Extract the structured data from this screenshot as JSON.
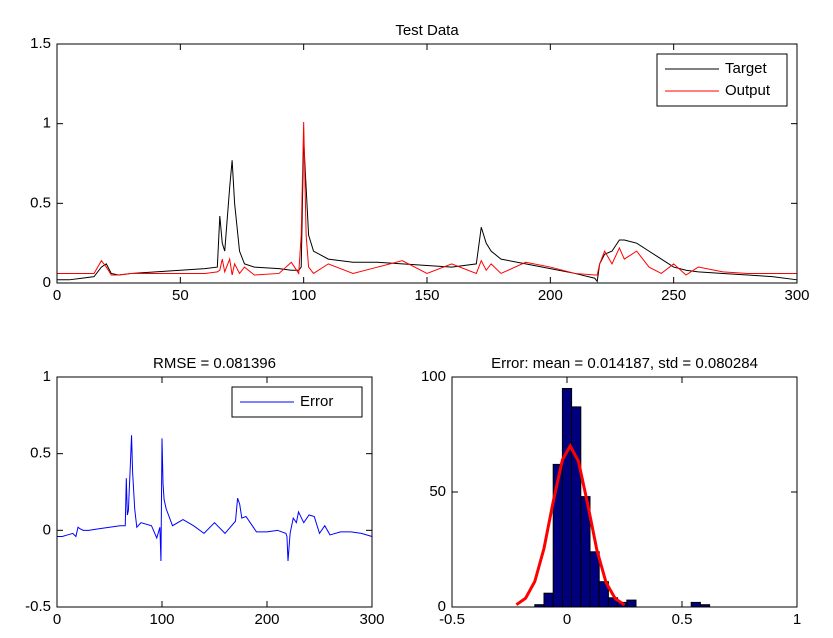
{
  "chart_data": [
    {
      "type": "line",
      "title": "Test Data",
      "x": [
        0,
        5,
        10,
        15,
        18,
        20,
        22,
        25,
        30,
        40,
        50,
        60,
        65,
        66,
        67,
        68,
        70,
        71,
        72,
        74,
        76,
        80,
        90,
        95,
        98,
        99,
        100,
        101,
        102,
        104,
        110,
        120,
        130,
        140,
        150,
        160,
        170,
        172,
        174,
        176,
        180,
        190,
        200,
        210,
        218,
        219,
        220,
        222,
        225,
        228,
        230,
        235,
        240,
        245,
        250,
        255,
        260,
        270,
        280,
        290,
        300
      ],
      "series": [
        {
          "name": "Target",
          "color": "#000000",
          "values": [
            0.02,
            0.02,
            0.03,
            0.04,
            0.1,
            0.12,
            0.06,
            0.05,
            0.06,
            0.07,
            0.08,
            0.09,
            0.1,
            0.42,
            0.25,
            0.2,
            0.6,
            0.77,
            0.5,
            0.2,
            0.12,
            0.1,
            0.09,
            0.08,
            0.08,
            0.1,
            0.9,
            0.6,
            0.3,
            0.2,
            0.15,
            0.13,
            0.13,
            0.12,
            0.11,
            0.1,
            0.12,
            0.35,
            0.25,
            0.2,
            0.15,
            0.12,
            0.09,
            0.06,
            0.03,
            0.01,
            0.12,
            0.18,
            0.2,
            0.27,
            0.27,
            0.25,
            0.2,
            0.15,
            0.1,
            0.08,
            0.07,
            0.06,
            0.05,
            0.04,
            0.02
          ]
        },
        {
          "name": "Output",
          "color": "#ff0000",
          "values": [
            0.06,
            0.06,
            0.06,
            0.06,
            0.14,
            0.1,
            0.05,
            0.05,
            0.06,
            0.06,
            0.06,
            0.06,
            0.07,
            0.08,
            0.15,
            0.07,
            0.15,
            0.05,
            0.12,
            0.06,
            0.1,
            0.05,
            0.06,
            0.13,
            0.06,
            0.3,
            1.01,
            0.3,
            0.1,
            0.06,
            0.12,
            0.06,
            0.1,
            0.14,
            0.06,
            0.12,
            0.06,
            0.14,
            0.08,
            0.12,
            0.06,
            0.13,
            0.1,
            0.06,
            0.05,
            0.05,
            0.12,
            0.2,
            0.12,
            0.22,
            0.15,
            0.2,
            0.1,
            0.06,
            0.12,
            0.05,
            0.1,
            0.07,
            0.06,
            0.06,
            0.06
          ]
        }
      ],
      "xlim": [
        0,
        300
      ],
      "xticks": [
        0,
        50,
        100,
        150,
        200,
        250,
        300
      ],
      "ylim": [
        0,
        1.5
      ],
      "yticks": [
        0,
        0.5,
        1,
        1.5
      ],
      "legend": "upper right"
    },
    {
      "type": "line",
      "title": "RMSE = 0.081396",
      "x": [
        0,
        5,
        10,
        15,
        18,
        20,
        22,
        25,
        30,
        40,
        50,
        60,
        65,
        66,
        67,
        68,
        70,
        71,
        72,
        74,
        76,
        80,
        90,
        95,
        98,
        99,
        100,
        101,
        102,
        104,
        110,
        120,
        130,
        140,
        150,
        160,
        170,
        172,
        174,
        176,
        180,
        190,
        200,
        210,
        218,
        219,
        220,
        222,
        225,
        228,
        230,
        235,
        240,
        245,
        250,
        255,
        260,
        270,
        280,
        290,
        300
      ],
      "series": [
        {
          "name": "Error",
          "color": "#0000ff",
          "values": [
            -0.04,
            -0.04,
            -0.03,
            -0.02,
            -0.04,
            0.02,
            0.01,
            0,
            0,
            0.01,
            0.02,
            0.03,
            0.03,
            0.34,
            0.1,
            0.13,
            0.45,
            0.62,
            0.38,
            0.14,
            0.02,
            0.05,
            0.03,
            -0.05,
            0.02,
            -0.2,
            0.6,
            0.3,
            0.2,
            0.14,
            0.03,
            0.07,
            0.03,
            -0.02,
            0.05,
            -0.02,
            0.06,
            0.21,
            0.17,
            0.08,
            0.09,
            -0.01,
            -0.01,
            0,
            -0.02,
            -0.04,
            -0.2,
            -0.02,
            0.08,
            0.05,
            0.12,
            0.05,
            0.1,
            0.09,
            -0.02,
            0.03,
            -0.03,
            -0.01,
            -0.01,
            -0.02,
            -0.04
          ]
        }
      ],
      "xlim": [
        0,
        300
      ],
      "xticks": [
        0,
        100,
        200,
        300
      ],
      "ylim": [
        -0.5,
        1
      ],
      "yticks": [
        -0.5,
        0,
        0.5,
        1
      ],
      "legend": "upper right"
    },
    {
      "type": "histogram",
      "title": "Error: mean = 0.014187, std = 0.080284",
      "bins": [
        -0.14,
        -0.1,
        -0.06,
        -0.02,
        0.02,
        0.06,
        0.1,
        0.14,
        0.18,
        0.22,
        0.26,
        0.3,
        0.34,
        0.38,
        0.42,
        0.46,
        0.5,
        0.54,
        0.58,
        0.62
      ],
      "counts": [
        1,
        6,
        62,
        95,
        87,
        48,
        24,
        11,
        4,
        2,
        3,
        0,
        0,
        0,
        0,
        0,
        0,
        2,
        1
      ],
      "color": "#00007f",
      "curve": {
        "color": "#ff0000",
        "x": [
          -0.22,
          -0.18,
          -0.14,
          -0.1,
          -0.06,
          -0.02,
          0.014,
          0.05,
          0.09,
          0.13,
          0.17,
          0.21,
          0.25
        ],
        "values": [
          1.0,
          3.8,
          11.1,
          25.5,
          45.8,
          64,
          70,
          63.3,
          44.7,
          24.7,
          10.6,
          3.6,
          0.9
        ]
      },
      "xlim": [
        -0.5,
        1
      ],
      "xticks": [
        -0.5,
        0,
        0.5,
        1
      ],
      "ylim": [
        0,
        100
      ],
      "yticks": [
        0,
        50,
        100
      ]
    }
  ]
}
